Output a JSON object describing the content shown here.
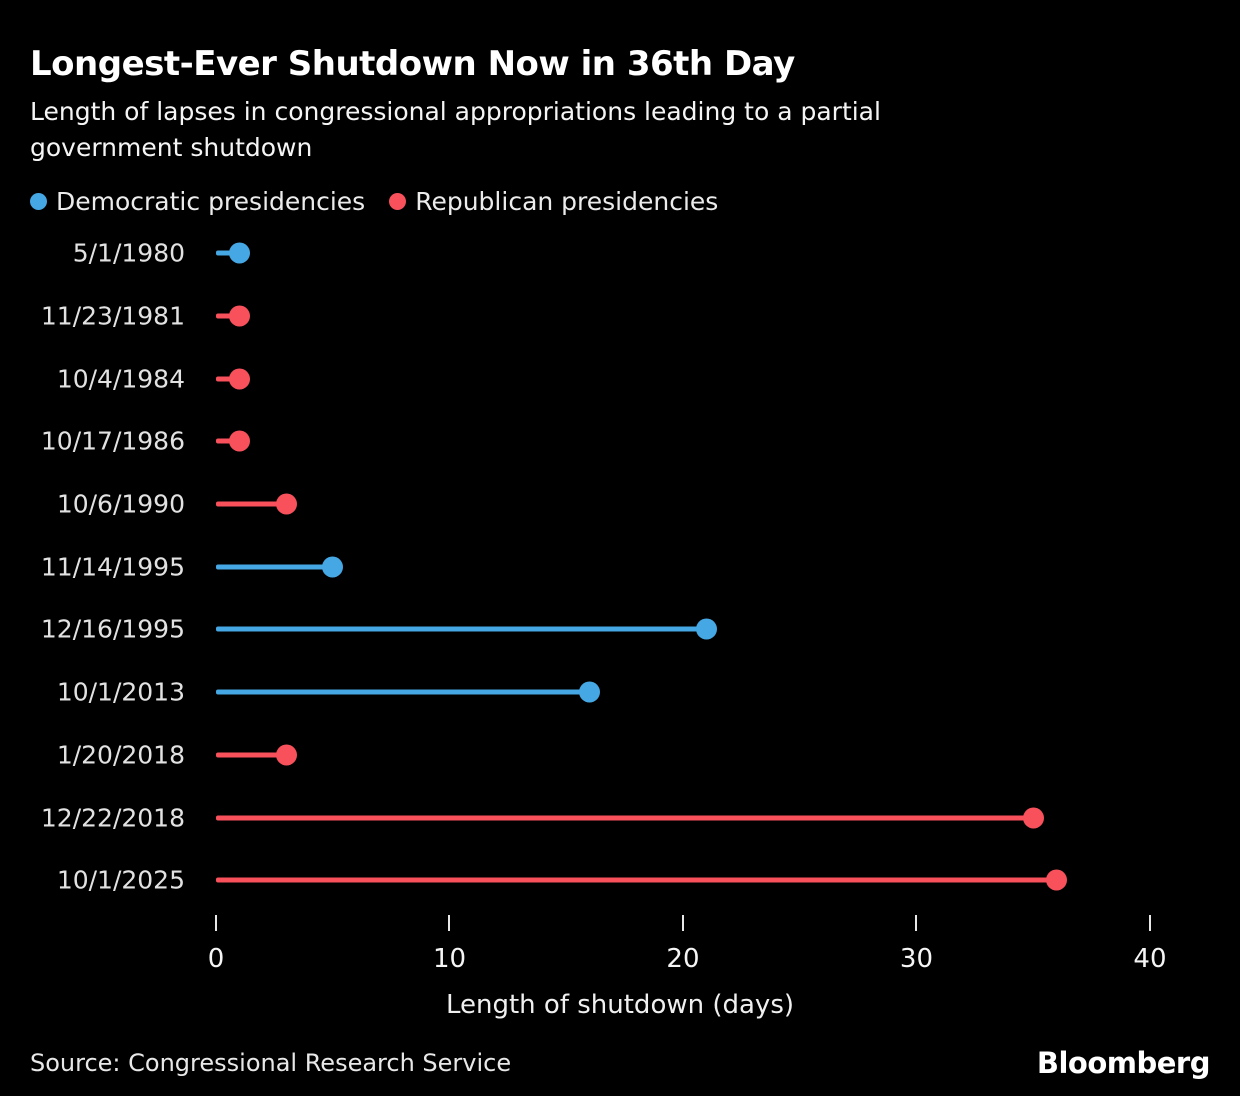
{
  "header": {
    "title": "Longest-Ever Shutdown Now in 36th Day",
    "subtitle_line1": "Length of lapses in congressional appropriations leading to a partial",
    "subtitle_line2": "government shutdown"
  },
  "legend": {
    "items": [
      {
        "label": "Democratic presidencies",
        "party": "D",
        "color": "#45a7e3"
      },
      {
        "label": "Republican presidencies",
        "party": "R",
        "color": "#f8515c"
      }
    ]
  },
  "colors": {
    "background": "#000000",
    "democratic": "#45a7e3",
    "republican": "#f8515c",
    "text": "#ffffff",
    "muted_text": "#e2e2e2"
  },
  "chart_data": {
    "type": "bar",
    "subtype": "lollipop",
    "orientation": "horizontal",
    "title": "Longest-Ever Shutdown Now in 36th Day",
    "xlabel": "Length of shutdown (days)",
    "ylabel": "",
    "xlim": [
      0,
      43
    ],
    "xticks": [
      0,
      10,
      20,
      30,
      40
    ],
    "grid": false,
    "legend_position": "top",
    "categories": [
      "5/1/1980",
      "11/23/1981",
      "10/4/1984",
      "10/17/1986",
      "10/6/1990",
      "11/14/1995",
      "12/16/1995",
      "10/1/2013",
      "1/20/2018",
      "12/22/2018",
      "10/1/2025"
    ],
    "rows": [
      {
        "date": "5/1/1980",
        "days": 1,
        "party": "D"
      },
      {
        "date": "11/23/1981",
        "days": 1,
        "party": "R"
      },
      {
        "date": "10/4/1984",
        "days": 1,
        "party": "R"
      },
      {
        "date": "10/17/1986",
        "days": 1,
        "party": "R"
      },
      {
        "date": "10/6/1990",
        "days": 3,
        "party": "R"
      },
      {
        "date": "11/14/1995",
        "days": 5,
        "party": "D"
      },
      {
        "date": "12/16/1995",
        "days": 21,
        "party": "D"
      },
      {
        "date": "10/1/2013",
        "days": 16,
        "party": "D"
      },
      {
        "date": "1/20/2018",
        "days": 3,
        "party": "R"
      },
      {
        "date": "12/22/2018",
        "days": 35,
        "party": "R"
      },
      {
        "date": "10/1/2025",
        "days": 36,
        "party": "R"
      }
    ]
  },
  "axis": {
    "title": "Length of shutdown (days)"
  },
  "footer": {
    "source": "Source: Congressional Research Service",
    "brand": "Bloomberg"
  }
}
